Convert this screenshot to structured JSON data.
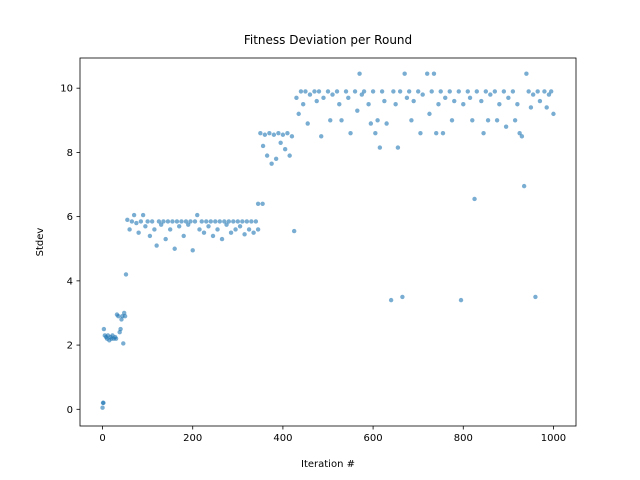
{
  "chart_data": {
    "type": "scatter",
    "title": "Fitness Deviation per Round",
    "x_label": "Iteration #",
    "y_label": "Stdev",
    "xlim": [
      -50,
      1050
    ],
    "ylim": [
      -0.52,
      10.94
    ],
    "xticks": [
      0,
      200,
      400,
      600,
      800,
      1000
    ],
    "yticks": [
      0,
      2,
      4,
      6,
      8,
      10
    ],
    "grid": false,
    "series": [
      {
        "color": "#1f77b4",
        "x": [
          0,
          1,
          2,
          3,
          5,
          8,
          10,
          12,
          15,
          18,
          20,
          22,
          25,
          28,
          30,
          32,
          35,
          38,
          40,
          42,
          44,
          46,
          48,
          50,
          52,
          55,
          60,
          65,
          70,
          75,
          80,
          85,
          90,
          95,
          100,
          105,
          110,
          115,
          120,
          125,
          130,
          135,
          140,
          145,
          150,
          155,
          160,
          165,
          170,
          175,
          180,
          185,
          190,
          195,
          200,
          205,
          210,
          215,
          220,
          225,
          230,
          235,
          240,
          245,
          250,
          255,
          260,
          265,
          270,
          275,
          280,
          285,
          290,
          295,
          300,
          305,
          310,
          315,
          320,
          325,
          330,
          335,
          340,
          345,
          345,
          355,
          350,
          356,
          360,
          365,
          370,
          375,
          380,
          385,
          390,
          395,
          400,
          405,
          410,
          415,
          420,
          425,
          430,
          435,
          440,
          445,
          450,
          455,
          460,
          470,
          475,
          480,
          485,
          490,
          500,
          505,
          510,
          520,
          525,
          530,
          540,
          545,
          550,
          560,
          565,
          570,
          575,
          580,
          590,
          595,
          600,
          605,
          610,
          615,
          620,
          625,
          630,
          640,
          645,
          650,
          655,
          660,
          665,
          670,
          675,
          680,
          685,
          690,
          700,
          705,
          710,
          720,
          725,
          730,
          735,
          740,
          745,
          750,
          755,
          760,
          770,
          775,
          780,
          790,
          795,
          800,
          810,
          815,
          820,
          825,
          830,
          840,
          845,
          850,
          855,
          860,
          870,
          875,
          880,
          890,
          895,
          900,
          910,
          915,
          920,
          925,
          930,
          935,
          940,
          945,
          950,
          955,
          960,
          965,
          970,
          980,
          985,
          990,
          995,
          1000
        ],
        "values": [
          0.05,
          0.2,
          0.2,
          2.5,
          2.3,
          2.25,
          2.2,
          2.3,
          2.15,
          2.25,
          2.2,
          2.3,
          2.2,
          2.25,
          2.2,
          2.95,
          2.9,
          2.4,
          2.5,
          2.8,
          2.9,
          2.05,
          3.0,
          2.9,
          4.2,
          5.9,
          5.6,
          5.85,
          6.05,
          5.8,
          5.5,
          5.85,
          6.05,
          5.7,
          5.85,
          5.4,
          5.85,
          5.6,
          5.1,
          5.85,
          5.75,
          5.85,
          5.3,
          5.85,
          5.6,
          5.85,
          5.0,
          5.85,
          5.7,
          5.85,
          5.4,
          5.85,
          5.75,
          5.85,
          4.95,
          5.85,
          6.05,
          5.6,
          5.85,
          5.5,
          5.85,
          5.7,
          5.85,
          5.4,
          5.85,
          5.6,
          5.85,
          5.3,
          5.85,
          5.75,
          5.85,
          5.5,
          5.85,
          5.6,
          5.85,
          5.7,
          5.85,
          5.45,
          5.85,
          5.6,
          5.85,
          5.5,
          5.85,
          5.6,
          6.4,
          6.4,
          8.6,
          8.2,
          8.55,
          7.9,
          8.6,
          7.65,
          8.55,
          7.8,
          8.6,
          8.3,
          8.55,
          8.1,
          8.6,
          7.9,
          8.5,
          5.55,
          9.7,
          9.2,
          9.9,
          9.5,
          9.9,
          8.9,
          9.8,
          9.9,
          9.6,
          9.9,
          8.5,
          9.7,
          9.9,
          9.0,
          9.8,
          9.9,
          9.5,
          9.0,
          9.9,
          9.7,
          8.6,
          9.9,
          9.3,
          10.45,
          9.8,
          9.9,
          9.5,
          8.9,
          9.9,
          8.6,
          9.0,
          8.15,
          9.9,
          9.6,
          8.9,
          3.4,
          9.9,
          9.5,
          8.15,
          9.9,
          3.5,
          10.45,
          9.7,
          9.9,
          9.0,
          9.6,
          9.9,
          8.6,
          9.8,
          10.45,
          9.2,
          9.9,
          10.45,
          8.6,
          9.5,
          9.9,
          8.6,
          9.7,
          9.9,
          9.0,
          9.6,
          9.9,
          3.4,
          9.5,
          9.9,
          9.7,
          9.0,
          6.55,
          9.9,
          9.6,
          8.6,
          9.9,
          9.0,
          9.8,
          9.9,
          9.0,
          9.5,
          9.9,
          8.8,
          9.7,
          9.9,
          9.0,
          9.5,
          8.6,
          8.5,
          6.95,
          10.45,
          9.9,
          9.4,
          9.8,
          3.5,
          9.9,
          9.6,
          9.9,
          9.4,
          9.8,
          9.9,
          9.2
        ]
      }
    ]
  }
}
